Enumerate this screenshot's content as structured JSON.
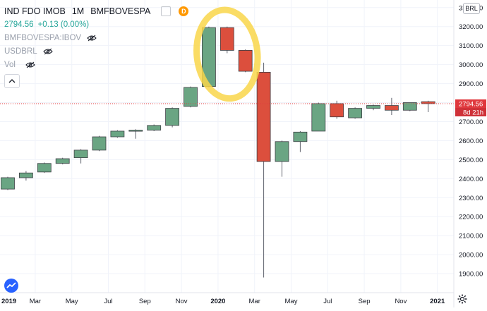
{
  "header": {
    "symbol": "IND FDO IMOB",
    "interval": "1M",
    "exchange": "BMFBOVESPA",
    "badge": "D",
    "last_price": "2794.56",
    "change": "+0.13 (0.00%)",
    "compare_1": "BMFBOVESPA:IBOV",
    "compare_2": "USDBRL",
    "volume_label": "Vol",
    "currency": "BRL"
  },
  "price_axis": {
    "ticks": [
      "3300.00",
      "3200.00",
      "3100.00",
      "3000.00",
      "2900.00",
      "2800.00",
      "2700.00",
      "2600.00",
      "2500.00",
      "2400.00",
      "2300.00",
      "2200.00",
      "2100.00",
      "2000.00",
      "1900.00"
    ],
    "last_price_label": "2794.56",
    "countdown_label": "8d 21h"
  },
  "time_axis": {
    "labels": [
      "2019",
      "Mar",
      "May",
      "Jul",
      "Sep",
      "Nov",
      "2020",
      "Mar",
      "May",
      "Jul",
      "Sep",
      "Nov",
      "2021"
    ]
  },
  "colors": {
    "up": "#6aa583",
    "down": "#dc4f3d",
    "highlight": "#f9d64a",
    "last_price": "#e0393e",
    "countdown_bg": "#cf3138"
  },
  "chart_data": {
    "type": "candlestick",
    "interval": "1M",
    "ylim": [
      1800,
      3340
    ],
    "last_price": 2794.56,
    "candles": [
      {
        "open": 2345,
        "high": 2410,
        "low": 2340,
        "close": 2405
      },
      {
        "open": 2405,
        "high": 2440,
        "low": 2390,
        "close": 2430
      },
      {
        "open": 2435,
        "high": 2485,
        "low": 2430,
        "close": 2480
      },
      {
        "open": 2480,
        "high": 2510,
        "low": 2475,
        "close": 2505
      },
      {
        "open": 2510,
        "high": 2555,
        "low": 2480,
        "close": 2550
      },
      {
        "open": 2550,
        "high": 2625,
        "low": 2545,
        "close": 2620
      },
      {
        "open": 2620,
        "high": 2655,
        "low": 2615,
        "close": 2650
      },
      {
        "open": 2650,
        "high": 2660,
        "low": 2610,
        "close": 2655
      },
      {
        "open": 2655,
        "high": 2685,
        "low": 2650,
        "close": 2680
      },
      {
        "open": 2680,
        "high": 2775,
        "low": 2670,
        "close": 2770
      },
      {
        "open": 2780,
        "high": 2885,
        "low": 2775,
        "close": 2880
      },
      {
        "open": 2885,
        "high": 3200,
        "low": 2880,
        "close": 3195
      },
      {
        "open": 3195,
        "high": 3200,
        "low": 3060,
        "close": 3075
      },
      {
        "open": 3075,
        "high": 3080,
        "low": 2960,
        "close": 2965
      },
      {
        "open": 2960,
        "high": 3010,
        "low": 1880,
        "close": 2490
      },
      {
        "open": 2490,
        "high": 2600,
        "low": 2410,
        "close": 2595
      },
      {
        "open": 2595,
        "high": 2650,
        "low": 2540,
        "close": 2645
      },
      {
        "open": 2650,
        "high": 2800,
        "low": 2650,
        "close": 2795
      },
      {
        "open": 2795,
        "high": 2810,
        "low": 2715,
        "close": 2725
      },
      {
        "open": 2720,
        "high": 2775,
        "low": 2715,
        "close": 2770
      },
      {
        "open": 2770,
        "high": 2790,
        "low": 2760,
        "close": 2785
      },
      {
        "open": 2785,
        "high": 2825,
        "low": 2735,
        "close": 2760
      },
      {
        "open": 2760,
        "high": 2800,
        "low": 2755,
        "close": 2800
      },
      {
        "open": 2805,
        "high": 2810,
        "low": 2750,
        "close": 2794.56
      }
    ],
    "annotation": {
      "type": "ellipse",
      "covers_candles": [
        11,
        13
      ]
    }
  }
}
